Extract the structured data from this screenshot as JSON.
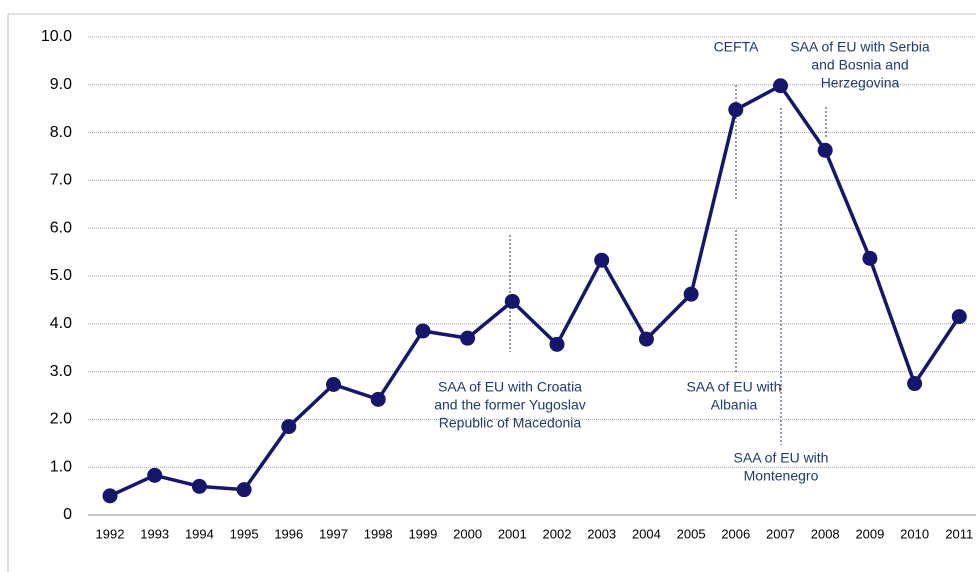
{
  "chart_data": {
    "type": "line",
    "x": [
      1992,
      1993,
      1994,
      1995,
      1996,
      1997,
      1998,
      1999,
      2000,
      2001,
      2002,
      2003,
      2004,
      2005,
      2006,
      2007,
      2008,
      2009,
      2010,
      2011
    ],
    "series": [
      {
        "color": "#16166b",
        "values": [
          0.4,
          0.83,
          0.6,
          0.53,
          1.85,
          2.73,
          2.42,
          3.85,
          3.7,
          4.47,
          3.57,
          5.33,
          3.68,
          4.62,
          8.48,
          8.98,
          7.63,
          5.37,
          2.75,
          4.15
        ]
      }
    ],
    "ylim": [
      0,
      10
    ],
    "yticks": [
      0,
      {
        "value": 1,
        "label": "1.0"
      },
      {
        "value": 2,
        "label": "2.0"
      },
      {
        "value": 3,
        "label": "3.0"
      },
      {
        "value": 4,
        "label": "4.0"
      },
      {
        "value": 5,
        "label": "5.0"
      },
      {
        "value": 6,
        "label": "6.0"
      },
      {
        "value": 7,
        "label": "7.0"
      },
      {
        "value": 8,
        "label": "8.0"
      },
      {
        "value": 9,
        "label": "9.0"
      },
      {
        "value": 10,
        "label": "10.0"
      }
    ],
    "grid": true,
    "annotations": [
      [
        "CEFTA"
      ],
      [
        "SAA of EU with Serbia",
        "and Bosnia and",
        "Herzegovina"
      ],
      [
        "SAA of EU with Croatia",
        "and the former Yugoslav",
        "Republic of Macedonia"
      ],
      [
        "SAA of EU with",
        "Albania"
      ],
      [
        "SAA of EU with",
        "Montenegro"
      ]
    ]
  }
}
